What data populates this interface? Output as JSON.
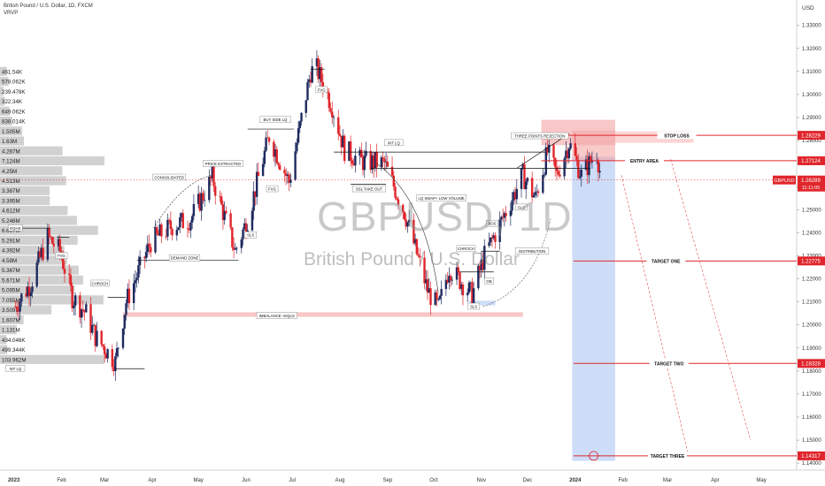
{
  "header": {
    "title": "British Pound / U.S. Dollar, 1D, FXCM",
    "indicator": "VRVP",
    "currency": "USD"
  },
  "watermark": {
    "symbol": "GBPUSD, 1D",
    "name": "British Pound / U.S. Dollar"
  },
  "colors": {
    "bull": "#1e2a5e",
    "bear": "#e0262c",
    "level": "#e0262c",
    "zone_red": "#f6b4b4",
    "zone_blue": "#b8d0f4",
    "profile": "#c9c9c9"
  },
  "chart_data": {
    "type": "candlestick",
    "symbol": "GBPUSD",
    "timeframe": "1D",
    "ylim": [
      1.137,
      1.341
    ],
    "x_ticks": [
      "2023",
      "Feb",
      "Mar",
      "Apr",
      "May",
      "Jun",
      "Jul",
      "Aug",
      "Sep",
      "Oct",
      "Nov",
      "Dec",
      "2024",
      "Feb",
      "Mar",
      "Apr",
      "May"
    ],
    "y_ticks": [
      "1.33000",
      "1.32000",
      "1.31000",
      "1.30000",
      "1.29000",
      "1.28000",
      "1.27000",
      "1.26000",
      "1.25000",
      "1.24000",
      "1.23000",
      "1.22000",
      "1.21000",
      "1.20000",
      "1.19000",
      "1.18000",
      "1.17000",
      "1.16000",
      "1.15000",
      "1.14000"
    ],
    "key_points": [
      {
        "date": "2023-01-02",
        "price": 1.208
      },
      {
        "date": "2023-01-12",
        "price": 1.218
      },
      {
        "date": "2023-01-23",
        "price": 1.238
      },
      {
        "date": "2023-01-31",
        "price": 1.232
      },
      {
        "date": "2023-02-08",
        "price": 1.212
      },
      {
        "date": "2023-02-17",
        "price": 1.205
      },
      {
        "date": "2023-02-23",
        "price": 1.195
      },
      {
        "date": "2023-03-08",
        "price": 1.184
      },
      {
        "date": "2023-03-15",
        "price": 1.21
      },
      {
        "date": "2023-03-31",
        "price": 1.236
      },
      {
        "date": "2023-04-14",
        "price": 1.243
      },
      {
        "date": "2023-04-26",
        "price": 1.246
      },
      {
        "date": "2023-05-10",
        "price": 1.264
      },
      {
        "date": "2023-05-25",
        "price": 1.232
      },
      {
        "date": "2023-06-02",
        "price": 1.246
      },
      {
        "date": "2023-06-16",
        "price": 1.282
      },
      {
        "date": "2023-06-29",
        "price": 1.262
      },
      {
        "date": "2023-07-13",
        "price": 1.31
      },
      {
        "date": "2023-07-17",
        "price": 1.311
      },
      {
        "date": "2023-07-27",
        "price": 1.295
      },
      {
        "date": "2023-08-04",
        "price": 1.276
      },
      {
        "date": "2023-08-15",
        "price": 1.271
      },
      {
        "date": "2023-08-30",
        "price": 1.27
      },
      {
        "date": "2023-09-12",
        "price": 1.249
      },
      {
        "date": "2023-09-27",
        "price": 1.215
      },
      {
        "date": "2023-10-04",
        "price": 1.207
      },
      {
        "date": "2023-10-11",
        "price": 1.225
      },
      {
        "date": "2023-10-26",
        "price": 1.213
      },
      {
        "date": "2023-11-03",
        "price": 1.23
      },
      {
        "date": "2023-11-14",
        "price": 1.245
      },
      {
        "date": "2023-11-28",
        "price": 1.265
      },
      {
        "date": "2023-12-06",
        "price": 1.255
      },
      {
        "date": "2023-12-14",
        "price": 1.275
      },
      {
        "date": "2023-12-20",
        "price": 1.265
      },
      {
        "date": "2023-12-28",
        "price": 1.279
      },
      {
        "date": "2024-01-05",
        "price": 1.265
      },
      {
        "date": "2024-01-15",
        "price": 1.275
      },
      {
        "date": "2024-01-17",
        "price": 1.267
      }
    ],
    "horizontal_levels": [
      {
        "label": "STOP LOSS",
        "price": 1.28229,
        "price_label": "1.28229"
      },
      {
        "label": "ENTRY AREA",
        "price": 1.27124,
        "price_label": "1.27124"
      },
      {
        "label": "TARGET ONE",
        "price": 1.22775,
        "price_label": "1.22775"
      },
      {
        "label": "TARGET TWO",
        "price": 1.18328,
        "price_label": "1.18328"
      },
      {
        "label": "TARGET THREE",
        "price": 1.14317,
        "price_label": "1.14317"
      }
    ],
    "current_price": {
      "symbol": "GBPUSD",
      "price": 1.26289,
      "price_label": "1.26289",
      "countdown": "11:11:05"
    },
    "annotations": [
      {
        "text": "INT LQ",
        "date": "2023-01-02",
        "price": 1.181
      },
      {
        "text": "EQHS",
        "date": "2023-01-02",
        "price": 1.242
      },
      {
        "text": "FVG",
        "date": "2023-02-01",
        "price": 1.23
      },
      {
        "text": "CHROCH",
        "date": "2023-02-26",
        "price": 1.218
      },
      {
        "text": "CONSOLIDATED",
        "date": "2023-04-12",
        "price": 1.264
      },
      {
        "text": "PRICE EXTRACTED",
        "date": "2023-05-17",
        "price": 1.27
      },
      {
        "text": "DEMAND ZONE",
        "date": "2023-04-22",
        "price": 1.229
      },
      {
        "text": "SLS",
        "date": "2023-06-04",
        "price": 1.239
      },
      {
        "text": "BUY SIDE LQ",
        "date": "2023-06-20",
        "price": 1.289
      },
      {
        "text": "FVG",
        "date": "2023-06-18",
        "price": 1.259
      },
      {
        "text": "FVG",
        "date": "2023-07-20",
        "price": 1.302
      },
      {
        "text": "INT LQ",
        "date": "2023-09-05",
        "price": 1.279
      },
      {
        "text": "SSL TAKE OUT",
        "date": "2023-08-20",
        "price": 1.259
      },
      {
        "text": "LQ SWAP+ LOW VOLUME",
        "date": "2023-10-06",
        "price": 1.255
      },
      {
        "text": "THREE POINTS REJECTION",
        "date": "2023-12-09",
        "price": 1.282
      },
      {
        "text": "BOS",
        "date": "2023-11-08",
        "price": 1.244
      },
      {
        "text": "SLS",
        "date": "2023-11-27",
        "price": 1.251
      },
      {
        "text": "CHROCH",
        "date": "2023-10-22",
        "price": 1.233
      },
      {
        "text": "DISTRIBUTION",
        "date": "2023-12-04",
        "price": 1.232
      },
      {
        "text": "OB",
        "date": "2023-11-06",
        "price": 1.219
      },
      {
        "text": "SLS",
        "date": "2023-10-27",
        "price": 1.208
      },
      {
        "text": "IMBALANCE +EQLS",
        "date": "2023-06-21",
        "price": 1.204
      }
    ],
    "zones": [
      {
        "name": "supply",
        "from_date": "2023-12-10",
        "to_date": "2024-01-27",
        "top": 1.289,
        "bottom": 1.278
      },
      {
        "name": "supply-ext",
        "from_date": "2024-01-27",
        "to_date": "2024-03-18",
        "top": 1.284,
        "bottom": 1.279
      },
      {
        "name": "short-position-reward",
        "from_date": "2023-12-30",
        "to_date": "2024-01-27",
        "top": 1.273,
        "bottom": 1.141
      },
      {
        "name": "imbalance",
        "from_date": "2023-03-13",
        "to_date": "2023-11-28",
        "top": 1.2055,
        "bottom": 1.2035
      },
      {
        "name": "ob",
        "from_date": "2023-10-24",
        "to_date": "2023-11-10",
        "top": 1.2105,
        "bottom": 1.2085
      }
    ],
    "volume_profile": [
      {
        "label": "461.54K",
        "value": 461540
      },
      {
        "label": "578.062K",
        "value": 578062
      },
      {
        "label": "239.478K",
        "value": 239478
      },
      {
        "label": "322.34K",
        "value": 322340
      },
      {
        "label": "649.062K",
        "value": 649062
      },
      {
        "label": "838.014K",
        "value": 838014
      },
      {
        "label": "1.505M",
        "value": 1505000
      },
      {
        "label": "1.63M",
        "value": 1630000
      },
      {
        "label": "4.267M",
        "value": 4267000
      },
      {
        "label": "7.124M",
        "value": 7124000
      },
      {
        "label": "4.25M",
        "value": 4250000
      },
      {
        "label": "4.513M",
        "value": 4513000
      },
      {
        "label": "3.387M",
        "value": 3387000
      },
      {
        "label": "3.395M",
        "value": 3395000
      },
      {
        "label": "4.612M",
        "value": 4612000
      },
      {
        "label": "5.248M",
        "value": 5248000
      },
      {
        "label": "6.687M",
        "value": 6687000
      },
      {
        "label": "5.291M",
        "value": 5291000
      },
      {
        "label": "4.392M",
        "value": 4392000
      },
      {
        "label": "4.58M",
        "value": 4580000
      },
      {
        "label": "5.367M",
        "value": 5367000
      },
      {
        "label": "5.671M",
        "value": 5671000
      },
      {
        "label": "5.095M",
        "value": 5095000
      },
      {
        "label": "7.055M",
        "value": 7055000
      },
      {
        "label": "3.509M",
        "value": 3509000
      },
      {
        "label": "1.607M",
        "value": 1607000
      },
      {
        "label": "1.131M",
        "value": 1131000
      },
      {
        "label": "434.046K",
        "value": 434046
      },
      {
        "label": "499.344K",
        "value": 499344
      },
      {
        "label": "103.962M",
        "value": 103962000
      }
    ]
  }
}
